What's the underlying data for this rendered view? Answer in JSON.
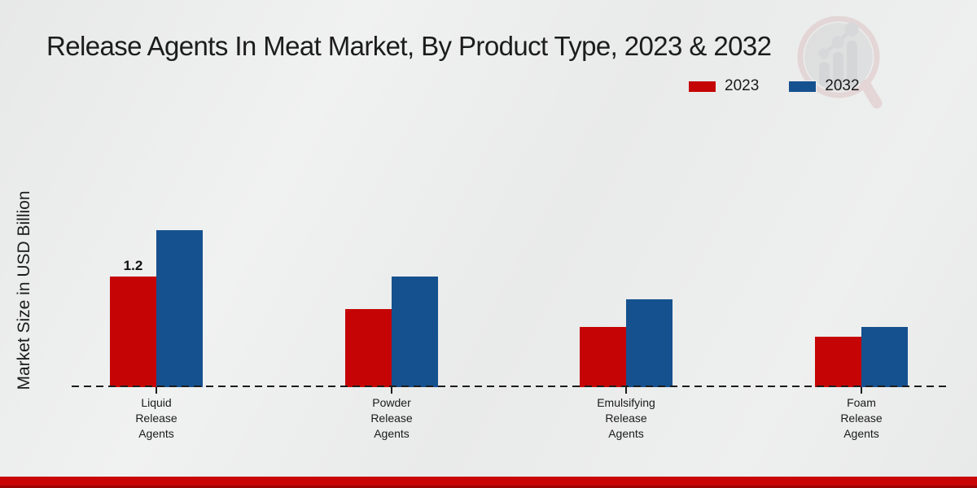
{
  "header": {
    "title": "Release Agents In Meat Market, By Product Type, 2023 & 2032"
  },
  "chart_data": {
    "type": "bar",
    "title": "Release Agents In Meat Market, By Product Type, 2023 & 2032",
    "xlabel": "",
    "ylabel": "Market Size in USD Billion",
    "units": "USD Billion",
    "categories": [
      "Liquid Release Agents",
      "Powder Release Agents",
      "Emulsifying Release Agents",
      "Foam Release Agents"
    ],
    "series": [
      {
        "name": "2023",
        "color": "#c50505",
        "values": [
          1.2,
          0.85,
          0.65,
          0.55
        ]
      },
      {
        "name": "2032",
        "color": "#15518f",
        "values": [
          1.7,
          1.2,
          0.95,
          0.65
        ]
      }
    ],
    "bar_labels": [
      {
        "series_index": 0,
        "category_index": 0,
        "text": "1.2"
      }
    ],
    "ylim": [
      0,
      1.8
    ],
    "grid": false,
    "y_ticks_visible": false,
    "legend_position": "top-right",
    "x_axis_style": "dashed"
  },
  "footer": {
    "accent_color": "#c90505"
  },
  "watermark": {
    "icon": "market-research-future-logo"
  }
}
